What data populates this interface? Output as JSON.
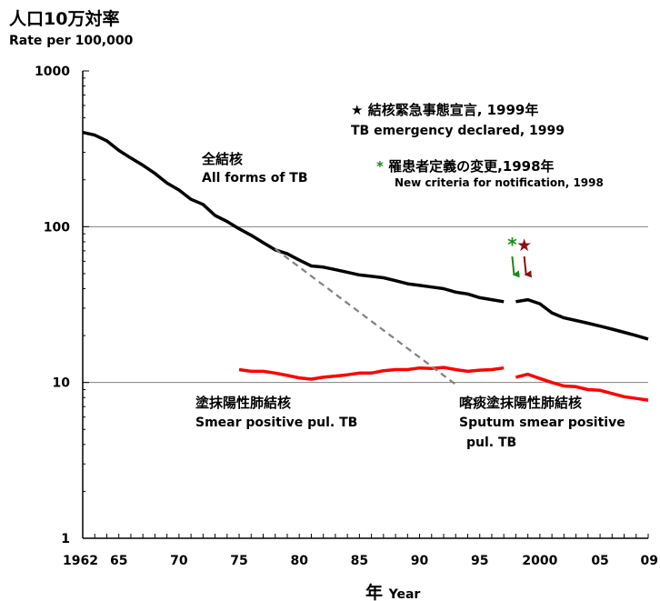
{
  "header": {
    "title_ja": "人口10万対率",
    "title_en": "Rate per 100,000"
  },
  "annotations": {
    "all_forms_ja": "全結核",
    "all_forms_en": "All forms of TB",
    "emergency_ja": "結核緊急事態宣言, 1999年",
    "emergency_en": "TB emergency declared, 1999",
    "criteria_ja": "罹患者定義の変更,1998年",
    "criteria_en": "New criteria for notification, 1998",
    "smear_ja": "塗抹陽性肺結核",
    "smear_en": "Smear positive pul. TB",
    "sputum_ja": "喀痰塗抹陽性肺結核",
    "sputum_en_line1": "Sputum smear positive",
    "sputum_en_line2": "pul. TB",
    "star_symbol": "★",
    "asterisk_symbol": "*"
  },
  "colors": {
    "all_forms": "#000000",
    "smear": "#ff0000",
    "projection": "#808080",
    "criteria_marker": "#1a8a1a",
    "emergency_marker": "#8b1010",
    "gridline": "#808080"
  },
  "chart_data": {
    "type": "line",
    "title": "人口10万対率",
    "ylabel": "Rate per 100,000",
    "xlabel": "年 Year",
    "xlabel_ja": "年",
    "xlabel_en": "Year",
    "yscale": "log",
    "ylim": [
      1,
      1000
    ],
    "xlim": [
      1962,
      2009
    ],
    "y_ticks": [
      {
        "value": 1,
        "label": "1"
      },
      {
        "value": 10,
        "label": "10"
      },
      {
        "value": 100,
        "label": "100"
      },
      {
        "value": 1000,
        "label": "1000"
      }
    ],
    "x_ticks": [
      {
        "value": 1962,
        "label": "1962"
      },
      {
        "value": 1965,
        "label": "65"
      },
      {
        "value": 1970,
        "label": "70"
      },
      {
        "value": 1975,
        "label": "75"
      },
      {
        "value": 1980,
        "label": "80"
      },
      {
        "value": 1985,
        "label": "85"
      },
      {
        "value": 1990,
        "label": "90"
      },
      {
        "value": 1995,
        "label": "95"
      },
      {
        "value": 2000,
        "label": "2000"
      },
      {
        "value": 2005,
        "label": "05"
      },
      {
        "value": 2009,
        "label": "09"
      }
    ],
    "gridlines_y": [
      10,
      100
    ],
    "series": [
      {
        "key": "all_forms",
        "name": "全結核 All forms of TB",
        "segments": [
          {
            "x": [
              1962,
              1963,
              1964,
              1965,
              1966,
              1967,
              1968,
              1969,
              1970,
              1971,
              1972,
              1973,
              1974,
              1975,
              1976,
              1977,
              1978,
              1979,
              1980,
              1981,
              1982,
              1983,
              1984,
              1985,
              1986,
              1987,
              1988,
              1989,
              1990,
              1991,
              1992,
              1993,
              1994,
              1995,
              1996,
              1997
            ],
            "y": [
              403,
              387,
              356,
              309,
              276,
              248,
              220,
              191,
              172,
              150,
              139,
              118,
              108,
              97,
              88,
              79,
              71,
              67,
              61,
              56,
              55,
              53,
              51,
              49,
              48,
              47,
              45,
              43,
              42,
              41,
              40,
              38,
              37,
              35,
              34,
              33
            ]
          },
          {
            "x": [
              1998,
              1999,
              2000,
              2001,
              2002,
              2003,
              2004,
              2005,
              2006,
              2007,
              2008,
              2009
            ],
            "y": [
              33,
              34,
              32,
              28,
              26,
              25,
              24,
              23,
              22,
              21,
              20,
              19
            ]
          }
        ]
      },
      {
        "key": "smear",
        "name": "塗抹陽性肺結核 Smear positive pul. TB",
        "segments": [
          {
            "x": [
              1975,
              1976,
              1977,
              1978,
              1979,
              1980,
              1981,
              1982,
              1983,
              1984,
              1985,
              1986,
              1987,
              1988,
              1989,
              1990,
              1991,
              1992,
              1993,
              1994,
              1995,
              1996,
              1997
            ],
            "y": [
              12.1,
              11.8,
              11.8,
              11.5,
              11.1,
              10.7,
              10.5,
              10.8,
              11.0,
              11.2,
              11.5,
              11.5,
              11.9,
              12.1,
              12.1,
              12.4,
              12.3,
              12.5,
              12.1,
              11.8,
              12.0,
              12.1,
              12.4
            ]
          },
          {
            "x": [
              1998,
              1999,
              2000,
              2001,
              2002,
              2003,
              2004,
              2005,
              2006,
              2007,
              2008,
              2009
            ],
            "y": [
              10.8,
              11.3,
              10.6,
              10.0,
              9.5,
              9.4,
              9.0,
              8.9,
              8.5,
              8.1,
              7.9,
              7.7
            ]
          }
        ]
      },
      {
        "key": "projection",
        "style": "dashed",
        "x": [
          1978,
          1993
        ],
        "y": [
          72,
          9.7
        ]
      }
    ],
    "markers": [
      {
        "key": "criteria",
        "symbol": "*",
        "x": 1998,
        "label": "罹患者定義の変更,1998年"
      },
      {
        "key": "emergency",
        "symbol": "★",
        "x": 1999,
        "label": "結核緊急事態宣言, 1999年"
      }
    ]
  }
}
